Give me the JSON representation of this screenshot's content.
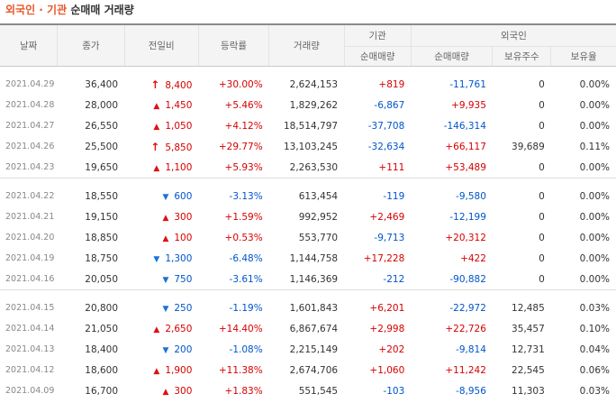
{
  "title": {
    "part1": "외국인 · 기관",
    "part2": "순매매 거래량"
  },
  "headers": {
    "date": "날짜",
    "close": "종가",
    "change": "전일비",
    "rate": "등락률",
    "volume": "거래량",
    "inst_group": "기관",
    "inst_net": "순매매량",
    "foreign_group": "외국인",
    "foreign_net": "순매매량",
    "foreign_hold": "보유주수",
    "foreign_ratio": "보유율"
  },
  "groups": [
    [
      {
        "date": "2021.04.29",
        "close": "36,400",
        "change_dir": "upper",
        "change": "8,400",
        "rate": "+30.00%",
        "volume": "2,624,153",
        "inst": "+819",
        "foreign": "-11,761",
        "hold": "0",
        "ratio": "0.00%"
      },
      {
        "date": "2021.04.28",
        "close": "28,000",
        "change_dir": "up",
        "change": "1,450",
        "rate": "+5.46%",
        "volume": "1,829,262",
        "inst": "-6,867",
        "foreign": "+9,935",
        "hold": "0",
        "ratio": "0.00%"
      },
      {
        "date": "2021.04.27",
        "close": "26,550",
        "change_dir": "up",
        "change": "1,050",
        "rate": "+4.12%",
        "volume": "18,514,797",
        "inst": "-37,708",
        "foreign": "-146,314",
        "hold": "0",
        "ratio": "0.00%"
      },
      {
        "date": "2021.04.26",
        "close": "25,500",
        "change_dir": "upper",
        "change": "5,850",
        "rate": "+29.77%",
        "volume": "13,103,245",
        "inst": "-32,634",
        "foreign": "+66,117",
        "hold": "39,689",
        "ratio": "0.11%"
      },
      {
        "date": "2021.04.23",
        "close": "19,650",
        "change_dir": "up",
        "change": "1,100",
        "rate": "+5.93%",
        "volume": "2,263,530",
        "inst": "+111",
        "foreign": "+53,489",
        "hold": "0",
        "ratio": "0.00%"
      }
    ],
    [
      {
        "date": "2021.04.22",
        "close": "18,550",
        "change_dir": "down",
        "change": "600",
        "rate": "-3.13%",
        "volume": "613,454",
        "inst": "-119",
        "foreign": "-9,580",
        "hold": "0",
        "ratio": "0.00%"
      },
      {
        "date": "2021.04.21",
        "close": "19,150",
        "change_dir": "up",
        "change": "300",
        "rate": "+1.59%",
        "volume": "992,952",
        "inst": "+2,469",
        "foreign": "-12,199",
        "hold": "0",
        "ratio": "0.00%"
      },
      {
        "date": "2021.04.20",
        "close": "18,850",
        "change_dir": "up",
        "change": "100",
        "rate": "+0.53%",
        "volume": "553,770",
        "inst": "-9,713",
        "foreign": "+20,312",
        "hold": "0",
        "ratio": "0.00%"
      },
      {
        "date": "2021.04.19",
        "close": "18,750",
        "change_dir": "down",
        "change": "1,300",
        "rate": "-6.48%",
        "volume": "1,144,758",
        "inst": "+17,228",
        "foreign": "+422",
        "hold": "0",
        "ratio": "0.00%"
      },
      {
        "date": "2021.04.16",
        "close": "20,050",
        "change_dir": "down",
        "change": "750",
        "rate": "-3.61%",
        "volume": "1,146,369",
        "inst": "-212",
        "foreign": "-90,882",
        "hold": "0",
        "ratio": "0.00%"
      }
    ],
    [
      {
        "date": "2021.04.15",
        "close": "20,800",
        "change_dir": "down",
        "change": "250",
        "rate": "-1.19%",
        "volume": "1,601,843",
        "inst": "+6,201",
        "foreign": "-22,972",
        "hold": "12,485",
        "ratio": "0.03%"
      },
      {
        "date": "2021.04.14",
        "close": "21,050",
        "change_dir": "up",
        "change": "2,650",
        "rate": "+14.40%",
        "volume": "6,867,674",
        "inst": "+2,998",
        "foreign": "+22,726",
        "hold": "35,457",
        "ratio": "0.10%"
      },
      {
        "date": "2021.04.13",
        "close": "18,400",
        "change_dir": "down",
        "change": "200",
        "rate": "-1.08%",
        "volume": "2,215,149",
        "inst": "+202",
        "foreign": "-9,814",
        "hold": "12,731",
        "ratio": "0.04%"
      },
      {
        "date": "2021.04.12",
        "close": "18,600",
        "change_dir": "up",
        "change": "1,900",
        "rate": "+11.38%",
        "volume": "2,674,706",
        "inst": "+1,060",
        "foreign": "+11,242",
        "hold": "22,545",
        "ratio": "0.06%"
      },
      {
        "date": "2021.04.09",
        "close": "16,700",
        "change_dir": "up",
        "change": "300",
        "rate": "+1.83%",
        "volume": "551,545",
        "inst": "-103",
        "foreign": "-8,956",
        "hold": "11,303",
        "ratio": "0.03%"
      }
    ]
  ],
  "icons": {
    "upper": "upper-limit-arrow-icon",
    "up": "up-triangle-icon",
    "down": "down-triangle-icon"
  },
  "colors": {
    "title_accent": "#e8562a",
    "up": "#d60000",
    "down": "#0055cc"
  }
}
